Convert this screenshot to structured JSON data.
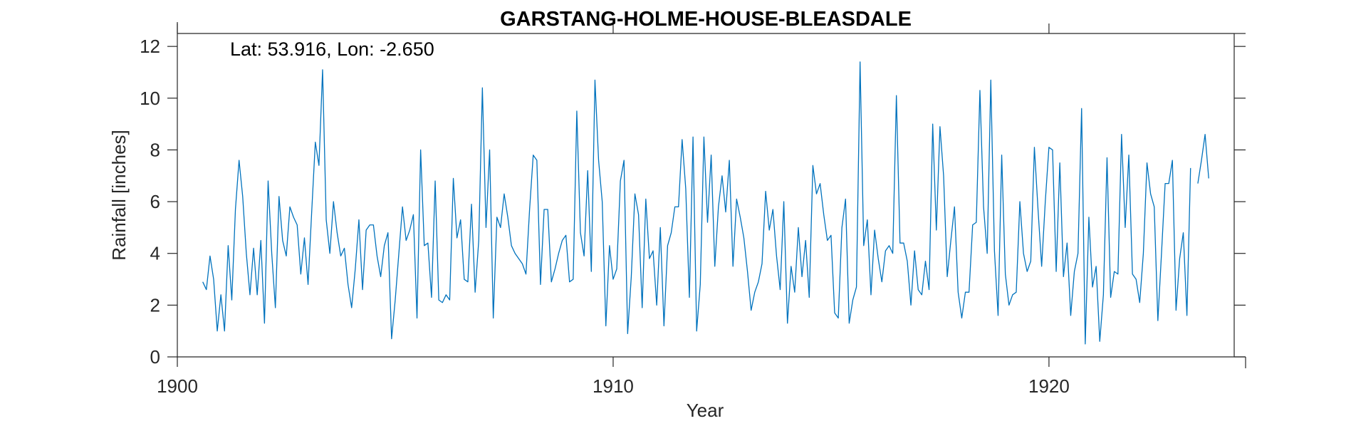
{
  "chart_data": {
    "type": "line",
    "title": "GARSTANG-HOLME-HOUSE-BLEASDALE",
    "annotation": "Lat: 53.916, Lon: -2.650",
    "xlabel": "Year",
    "ylabel": "Rainfall [inches]",
    "xlim": [
      1900,
      1924.25
    ],
    "ylim": [
      0,
      12.5
    ],
    "xticks": [
      1900,
      1910,
      1920
    ],
    "xtick_labels": [
      "1900",
      "1910",
      "1920"
    ],
    "yticks": [
      0,
      2,
      4,
      6,
      8,
      10,
      12
    ],
    "ytick_labels": [
      "0",
      "2",
      "4",
      "6",
      "8",
      "10",
      "12"
    ],
    "grid": false,
    "line_color": "#0072BD",
    "series": [
      {
        "start_year": 1900.583,
        "step_years": 0.08333,
        "values": [
          2.9,
          2.6,
          3.9,
          3.0,
          1.0,
          2.4,
          1.0,
          4.3,
          2.2,
          5.7,
          7.6,
          6.2,
          4.0,
          2.4,
          4.2,
          2.4,
          4.5,
          1.3,
          6.8,
          4.0,
          1.9,
          6.2,
          4.5,
          3.9,
          5.8,
          5.4,
          5.1,
          3.2,
          4.6,
          2.8,
          5.6,
          8.3,
          7.4,
          11.1,
          5.3,
          4.0,
          6.0,
          4.8,
          3.9,
          4.2,
          2.8,
          1.9,
          3.4,
          5.3,
          2.6,
          4.9,
          5.1,
          5.1,
          3.9,
          3.1,
          4.3,
          4.8,
          0.7,
          2.2,
          4.0,
          5.8,
          4.5,
          4.9,
          5.5,
          1.5,
          8.0,
          4.3,
          4.4,
          2.3,
          6.8,
          2.2,
          2.1,
          2.4,
          2.2,
          6.9,
          4.6,
          5.3,
          3.0,
          2.9,
          5.9,
          2.5,
          4.5,
          10.4,
          5.0,
          8.0,
          1.5,
          5.4,
          5.0,
          6.3,
          5.4,
          4.3,
          4.0,
          3.8,
          3.6,
          3.2,
          5.7,
          7.8,
          7.6,
          2.8,
          5.7,
          5.7,
          2.9,
          3.4,
          4.0,
          4.5,
          4.7,
          2.9,
          3.0,
          9.5,
          4.8,
          3.9,
          7.2,
          3.3,
          10.7,
          7.6,
          6.0,
          1.2,
          4.3,
          3.0,
          3.4,
          6.8,
          7.6,
          0.9,
          3.1,
          6.3,
          5.5,
          1.9,
          6.1,
          3.8,
          4.1,
          2.0,
          5.0,
          1.2,
          4.3,
          4.8,
          5.8,
          5.8,
          8.4,
          6.5,
          2.3,
          8.5,
          1.0,
          2.8,
          8.5,
          5.2,
          7.8,
          3.5,
          5.8,
          7.0,
          5.6,
          7.6,
          3.5,
          6.1,
          5.4,
          4.6,
          3.3,
          1.8,
          2.5,
          2.9,
          3.6,
          6.4,
          4.9,
          5.7,
          3.9,
          2.6,
          6.0,
          1.3,
          3.5,
          2.5,
          5.0,
          3.1,
          4.5,
          2.3,
          7.4,
          6.3,
          6.7,
          5.5,
          4.5,
          4.7,
          1.7,
          1.5,
          5.0,
          6.1,
          1.3,
          2.2,
          2.7,
          11.4,
          4.3,
          5.3,
          2.4,
          4.9,
          3.8,
          2.9,
          4.1,
          4.3,
          4.0,
          10.1,
          4.4,
          4.4,
          3.7,
          2.0,
          4.1,
          2.6,
          2.4,
          3.7,
          2.6,
          9.0,
          4.9,
          8.9,
          7.0,
          3.1,
          4.5,
          5.8,
          2.5,
          1.5,
          2.5,
          2.5,
          5.1,
          5.2,
          10.3,
          5.8,
          4.0,
          10.7,
          4.1,
          1.6,
          7.8,
          3.2,
          2.0,
          2.4,
          2.5,
          6.0,
          4.0,
          3.3,
          3.7,
          8.1,
          5.7,
          3.5,
          6.0,
          8.1,
          8.0,
          3.3,
          7.5,
          3.1,
          4.4,
          1.6,
          3.3,
          4.0,
          9.6,
          0.5,
          5.4,
          2.7,
          3.5,
          0.6,
          2.4,
          7.7,
          2.3,
          3.3,
          3.2,
          8.6,
          5.0,
          7.8,
          3.2,
          3.0,
          2.1,
          4.0,
          7.5,
          6.3,
          5.8,
          1.4,
          4.0,
          6.7,
          6.7,
          7.6,
          1.8,
          3.8,
          4.8,
          1.6,
          7.3,
          null,
          6.7,
          7.6,
          8.6,
          6.9
        ]
      }
    ]
  }
}
